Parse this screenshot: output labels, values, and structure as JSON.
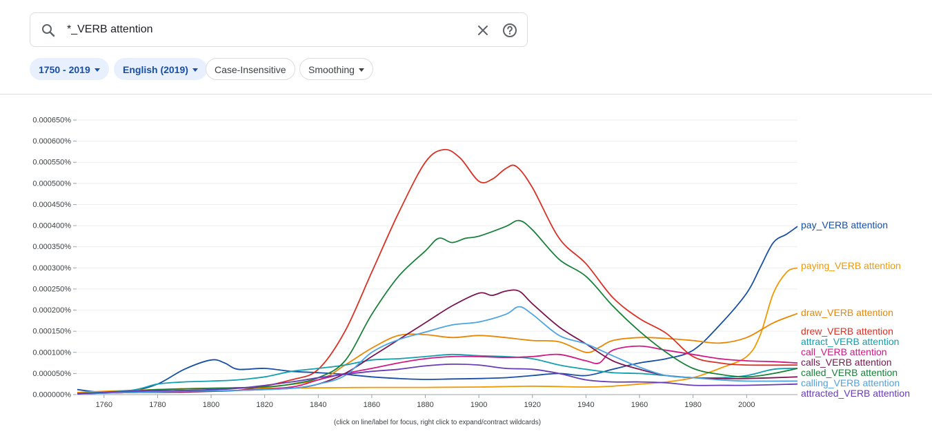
{
  "search": {
    "query": "*_VERB attention"
  },
  "filters": {
    "year_range": "1750 - 2019",
    "corpus": "English (2019)",
    "case": "Case-Insensitive",
    "smoothing": "Smoothing"
  },
  "footer_note": "(click on line/label for focus, right click to expand/contract wildcards)",
  "chart_data": {
    "type": "line",
    "xlim": [
      1750,
      2019
    ],
    "ylim": [
      0,
      0.00065
    ],
    "y_ticks": [
      "0.000000%",
      "0.000050%",
      "0.000100%",
      "0.000150%",
      "0.000200%",
      "0.000250%",
      "0.000300%",
      "0.000350%",
      "0.000400%",
      "0.000450%",
      "0.000500%",
      "0.000550%",
      "0.000600%",
      "0.000650%"
    ],
    "x_ticks": [
      "1760",
      "1780",
      "1800",
      "1820",
      "1840",
      "1860",
      "1880",
      "1900",
      "1920",
      "1940",
      "1960",
      "1980",
      "2000"
    ],
    "grid": "horizontal",
    "series": [
      {
        "name": "pay_VERB attention",
        "color": "#174ea6",
        "points": [
          [
            1750,
            1.2e-05
          ],
          [
            1760,
            5e-06
          ],
          [
            1770,
            8e-06
          ],
          [
            1780,
            2.5e-05
          ],
          [
            1790,
            6e-05
          ],
          [
            1800,
            8.2e-05
          ],
          [
            1805,
            7.5e-05
          ],
          [
            1810,
            6e-05
          ],
          [
            1820,
            6.2e-05
          ],
          [
            1830,
            5.5e-05
          ],
          [
            1840,
            5.2e-05
          ],
          [
            1850,
            4.8e-05
          ],
          [
            1860,
            4.2e-05
          ],
          [
            1870,
            3.8e-05
          ],
          [
            1880,
            3.6e-05
          ],
          [
            1890,
            3.7e-05
          ],
          [
            1900,
            3.8e-05
          ],
          [
            1910,
            4e-05
          ],
          [
            1920,
            4.5e-05
          ],
          [
            1930,
            5e-05
          ],
          [
            1940,
            4.5e-05
          ],
          [
            1950,
            6e-05
          ],
          [
            1960,
            7.5e-05
          ],
          [
            1970,
            8.5e-05
          ],
          [
            1980,
            0.000105
          ],
          [
            1990,
            0.000165
          ],
          [
            2000,
            0.00024
          ],
          [
            2005,
            0.0003
          ],
          [
            2010,
            0.00036
          ],
          [
            2015,
            0.00038
          ],
          [
            2019,
            0.000398
          ]
        ]
      },
      {
        "name": "paying_VERB attention",
        "color": "#f29900",
        "points": [
          [
            1750,
            5e-06
          ],
          [
            1760,
            8e-06
          ],
          [
            1780,
            1.2e-05
          ],
          [
            1800,
            1.5e-05
          ],
          [
            1820,
            1.5e-05
          ],
          [
            1840,
            1.6e-05
          ],
          [
            1860,
            1.7e-05
          ],
          [
            1880,
            1.7e-05
          ],
          [
            1900,
            1.8e-05
          ],
          [
            1920,
            2e-05
          ],
          [
            1940,
            1.8e-05
          ],
          [
            1950,
            2e-05
          ],
          [
            1960,
            2.5e-05
          ],
          [
            1970,
            3e-05
          ],
          [
            1980,
            4e-05
          ],
          [
            1990,
            6.2e-05
          ],
          [
            2000,
            9e-05
          ],
          [
            2005,
            0.00014
          ],
          [
            2010,
            0.00024
          ],
          [
            2015,
            0.00029
          ],
          [
            2019,
            0.0003
          ]
        ]
      },
      {
        "name": "draw_VERB attention",
        "color": "#ea8600",
        "points": [
          [
            1750,
            3e-06
          ],
          [
            1770,
            8e-06
          ],
          [
            1780,
            1.2e-05
          ],
          [
            1800,
            1.5e-05
          ],
          [
            1820,
            1.8e-05
          ],
          [
            1840,
            3.5e-05
          ],
          [
            1850,
            7e-05
          ],
          [
            1860,
            0.00011
          ],
          [
            1870,
            0.00014
          ],
          [
            1880,
            0.000142
          ],
          [
            1890,
            0.000135
          ],
          [
            1900,
            0.00014
          ],
          [
            1910,
            0.000135
          ],
          [
            1920,
            0.000128
          ],
          [
            1930,
            0.000125
          ],
          [
            1940,
            0.0001
          ],
          [
            1945,
            0.000112
          ],
          [
            1950,
            0.000128
          ],
          [
            1960,
            0.000135
          ],
          [
            1970,
            0.000133
          ],
          [
            1980,
            0.000128
          ],
          [
            1990,
            0.000122
          ],
          [
            2000,
            0.000135
          ],
          [
            2010,
            0.00017
          ],
          [
            2019,
            0.000192
          ]
        ]
      },
      {
        "name": "drew_VERB attention",
        "color": "#d93025",
        "points": [
          [
            1750,
            2e-06
          ],
          [
            1770,
            5e-06
          ],
          [
            1790,
            1e-05
          ],
          [
            1810,
            1e-05
          ],
          [
            1830,
            3.5e-05
          ],
          [
            1840,
            6e-05
          ],
          [
            1850,
            0.00015
          ],
          [
            1860,
            0.00029
          ],
          [
            1870,
            0.00043
          ],
          [
            1880,
            0.00055
          ],
          [
            1887,
            0.00058
          ],
          [
            1893,
            0.00056
          ],
          [
            1900,
            0.000505
          ],
          [
            1905,
            0.00051
          ],
          [
            1910,
            0.000535
          ],
          [
            1914,
            0.00054
          ],
          [
            1920,
            0.00049
          ],
          [
            1930,
            0.00037
          ],
          [
            1940,
            0.00031
          ],
          [
            1950,
            0.00023
          ],
          [
            1960,
            0.00018
          ],
          [
            1970,
            0.000145
          ],
          [
            1980,
            9e-05
          ],
          [
            1990,
            7.5e-05
          ],
          [
            2000,
            7e-05
          ],
          [
            2019,
            7e-05
          ]
        ]
      },
      {
        "name": "attract_VERB attention",
        "color": "#129eaf",
        "points": [
          [
            1750,
            3e-06
          ],
          [
            1770,
            1e-05
          ],
          [
            1780,
            2.5e-05
          ],
          [
            1790,
            3e-05
          ],
          [
            1800,
            3.2e-05
          ],
          [
            1810,
            3.5e-05
          ],
          [
            1820,
            4.2e-05
          ],
          [
            1830,
            5.5e-05
          ],
          [
            1840,
            6.2e-05
          ],
          [
            1850,
            7e-05
          ],
          [
            1860,
            8.2e-05
          ],
          [
            1870,
            8.5e-05
          ],
          [
            1880,
            9e-05
          ],
          [
            1890,
            9.5e-05
          ],
          [
            1900,
            9.2e-05
          ],
          [
            1910,
            9e-05
          ],
          [
            1920,
            8.5e-05
          ],
          [
            1930,
            7e-05
          ],
          [
            1940,
            6e-05
          ],
          [
            1950,
            5.2e-05
          ],
          [
            1960,
            5e-05
          ],
          [
            1970,
            4.5e-05
          ],
          [
            1980,
            4e-05
          ],
          [
            1990,
            4e-05
          ],
          [
            2000,
            4.5e-05
          ],
          [
            2010,
            6e-05
          ],
          [
            2019,
            6.2e-05
          ]
        ]
      },
      {
        "name": "call_VERB attention",
        "color": "#d01884",
        "points": [
          [
            1750,
            2e-06
          ],
          [
            1770,
            5e-06
          ],
          [
            1790,
            8e-06
          ],
          [
            1810,
            1e-05
          ],
          [
            1830,
            1.8e-05
          ],
          [
            1840,
            3.5e-05
          ],
          [
            1850,
            5e-05
          ],
          [
            1860,
            6.2e-05
          ],
          [
            1870,
            7.5e-05
          ],
          [
            1880,
            8.5e-05
          ],
          [
            1890,
            9e-05
          ],
          [
            1900,
            9e-05
          ],
          [
            1910,
            8.8e-05
          ],
          [
            1920,
            9e-05
          ],
          [
            1930,
            9.5e-05
          ],
          [
            1940,
            8e-05
          ],
          [
            1945,
            7.5e-05
          ],
          [
            1950,
            0.000105
          ],
          [
            1960,
            0.000115
          ],
          [
            1970,
            0.000105
          ],
          [
            1980,
            9.5e-05
          ],
          [
            1990,
            8.5e-05
          ],
          [
            2000,
            8e-05
          ],
          [
            2010,
            7.8e-05
          ],
          [
            2019,
            7.5e-05
          ]
        ]
      },
      {
        "name": "calls_VERB attention",
        "color": "#7b1450",
        "points": [
          [
            1750,
            2e-06
          ],
          [
            1770,
            5e-06
          ],
          [
            1790,
            6e-06
          ],
          [
            1810,
            1e-05
          ],
          [
            1830,
            1.5e-05
          ],
          [
            1840,
            2.5e-05
          ],
          [
            1850,
            5e-05
          ],
          [
            1860,
            9e-05
          ],
          [
            1870,
            0.00013
          ],
          [
            1880,
            0.00017
          ],
          [
            1890,
            0.00021
          ],
          [
            1900,
            0.00024
          ],
          [
            1905,
            0.000235
          ],
          [
            1910,
            0.000245
          ],
          [
            1915,
            0.000245
          ],
          [
            1920,
            0.000215
          ],
          [
            1930,
            0.00016
          ],
          [
            1940,
            0.00012
          ],
          [
            1950,
            8e-05
          ],
          [
            1960,
            6e-05
          ],
          [
            1970,
            4.5e-05
          ],
          [
            1980,
            4e-05
          ],
          [
            1990,
            3.8e-05
          ],
          [
            2000,
            3.8e-05
          ],
          [
            2019,
            4.2e-05
          ]
        ]
      },
      {
        "name": "called_VERB attention",
        "color": "#188038",
        "points": [
          [
            1750,
            2e-06
          ],
          [
            1770,
            8e-06
          ],
          [
            1780,
            1.2e-05
          ],
          [
            1800,
            1.5e-05
          ],
          [
            1820,
            1.8e-05
          ],
          [
            1830,
            2.5e-05
          ],
          [
            1840,
            4e-05
          ],
          [
            1850,
            8e-05
          ],
          [
            1860,
            0.00019
          ],
          [
            1870,
            0.00028
          ],
          [
            1880,
            0.00034
          ],
          [
            1885,
            0.00037
          ],
          [
            1890,
            0.00036
          ],
          [
            1895,
            0.00037
          ],
          [
            1900,
            0.000375
          ],
          [
            1910,
            0.000398
          ],
          [
            1915,
            0.000412
          ],
          [
            1920,
            0.00039
          ],
          [
            1930,
            0.00032
          ],
          [
            1940,
            0.00028
          ],
          [
            1950,
            0.00021
          ],
          [
            1960,
            0.00015
          ],
          [
            1970,
            0.0001
          ],
          [
            1980,
            6.2e-05
          ],
          [
            1990,
            4.8e-05
          ],
          [
            2000,
            4.2e-05
          ],
          [
            2010,
            5e-05
          ],
          [
            2019,
            6.2e-05
          ]
        ]
      },
      {
        "name": "calling_VERB attention",
        "color": "#4ba3e3",
        "points": [
          [
            1750,
            2e-06
          ],
          [
            1770,
            5e-06
          ],
          [
            1790,
            8e-06
          ],
          [
            1810,
            1e-05
          ],
          [
            1830,
            1.5e-05
          ],
          [
            1840,
            2.5e-05
          ],
          [
            1850,
            4.5e-05
          ],
          [
            1860,
            0.0001
          ],
          [
            1870,
            0.00013
          ],
          [
            1880,
            0.000148
          ],
          [
            1890,
            0.000165
          ],
          [
            1900,
            0.000172
          ],
          [
            1910,
            0.00019
          ],
          [
            1915,
            0.000208
          ],
          [
            1920,
            0.00019
          ],
          [
            1930,
            0.00014
          ],
          [
            1940,
            0.00012
          ],
          [
            1950,
            9.2e-05
          ],
          [
            1960,
            6.5e-05
          ],
          [
            1970,
            4.5e-05
          ],
          [
            1980,
            4e-05
          ],
          [
            1990,
            3.5e-05
          ],
          [
            2000,
            3.2e-05
          ],
          [
            2019,
            3.2e-05
          ]
        ]
      },
      {
        "name": "attracted_VERB attention",
        "color": "#673ab7",
        "points": [
          [
            1750,
            2e-06
          ],
          [
            1770,
            8e-06
          ],
          [
            1790,
            1e-05
          ],
          [
            1810,
            1.5e-05
          ],
          [
            1830,
            3e-05
          ],
          [
            1840,
            4e-05
          ],
          [
            1850,
            4.8e-05
          ],
          [
            1860,
            5.5e-05
          ],
          [
            1870,
            6e-05
          ],
          [
            1880,
            6.8e-05
          ],
          [
            1890,
            7.2e-05
          ],
          [
            1900,
            7e-05
          ],
          [
            1910,
            6.2e-05
          ],
          [
            1920,
            6e-05
          ],
          [
            1930,
            5e-05
          ],
          [
            1940,
            3.5e-05
          ],
          [
            1950,
            3e-05
          ],
          [
            1960,
            3e-05
          ],
          [
            1970,
            2.8e-05
          ],
          [
            1980,
            2.2e-05
          ],
          [
            1990,
            2.2e-05
          ],
          [
            2000,
            2.2e-05
          ],
          [
            2019,
            2.5e-05
          ]
        ]
      }
    ]
  }
}
